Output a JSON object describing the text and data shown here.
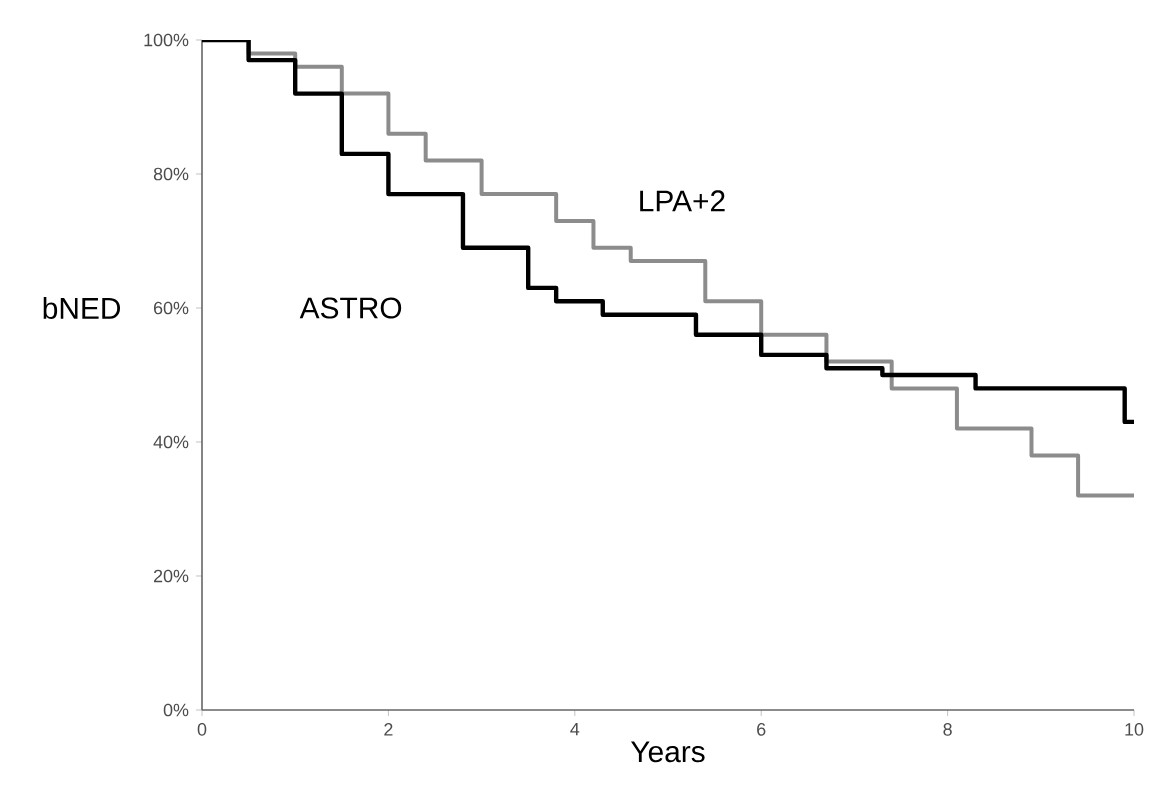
{
  "chart_data": {
    "type": "step",
    "xlabel": "Years",
    "ylabel": "bNED",
    "xlim": [
      0,
      10
    ],
    "xticks": [
      0,
      2,
      4,
      6,
      8,
      10
    ],
    "ylim": [
      0,
      100
    ],
    "yticks": [
      {
        "value": 0,
        "label": "0%"
      },
      {
        "value": 20,
        "label": "20%"
      },
      {
        "value": 40,
        "label": "40%"
      },
      {
        "value": 60,
        "label": "60%"
      },
      {
        "value": 80,
        "label": "80%"
      },
      {
        "value": 100,
        "label": "100%"
      }
    ],
    "series": [
      {
        "name": "LPA+2",
        "color": "#8c8c8c",
        "x": [
          0,
          0.5,
          1,
          1.5,
          2,
          2.4,
          3,
          3.8,
          4.2,
          4.6,
          5.4,
          6,
          6.7,
          7.4,
          8.1,
          8.9,
          9.4,
          10
        ],
        "values": [
          100,
          98,
          96,
          92,
          86,
          82,
          77,
          73,
          69,
          67,
          61,
          56,
          52,
          48,
          42,
          38,
          32,
          32
        ]
      },
      {
        "name": "ASTRO",
        "color": "#000000",
        "x": [
          0,
          0.5,
          1,
          1.5,
          2,
          2.8,
          3.5,
          3.8,
          4.3,
          5.3,
          6,
          6.7,
          7.3,
          8.3,
          9.9,
          10
        ],
        "values": [
          100,
          97,
          92,
          83,
          77,
          69,
          63,
          61,
          59,
          56,
          53,
          51,
          50,
          48,
          43,
          43
        ]
      }
    ]
  }
}
